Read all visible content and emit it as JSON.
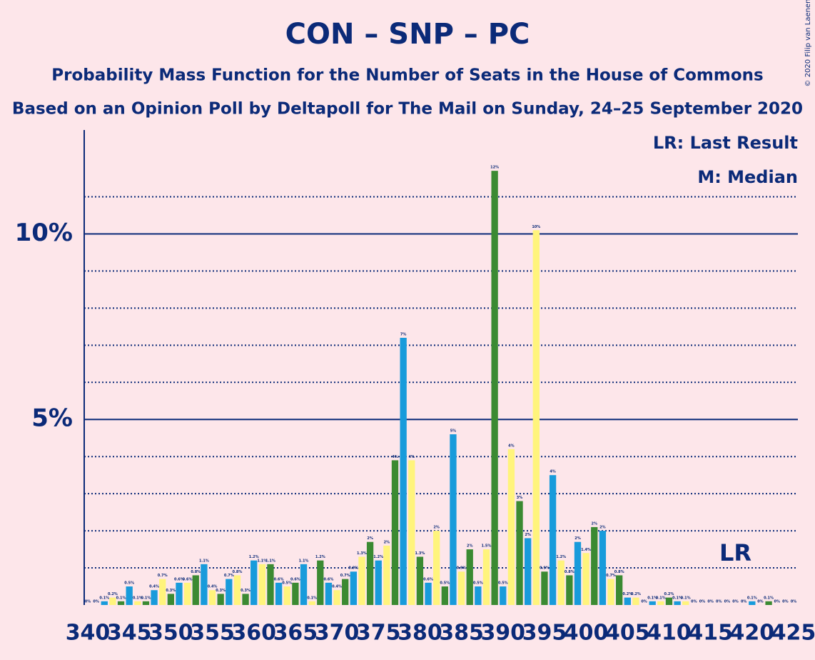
{
  "chart_data": {
    "type": "bar",
    "title": "CON – SNP – PC",
    "subtitle": "Probability Mass Function for the Number of Seats in the House of Commons",
    "subtitle2": "Based on an Opinion Poll by Deltapoll for The Mail on Sunday, 24–25 September 2020",
    "legend_lr": "LR: Last Result",
    "legend_m": "M: Median",
    "lr_label": "LR",
    "last_result": 418,
    "copyright": "© 2020 Filip van Laenen",
    "color_cycle": [
      "#fff47c",
      "#3b8a32",
      "#189bdb"
    ],
    "x": [
      340,
      341,
      342,
      343,
      344,
      345,
      346,
      347,
      348,
      349,
      350,
      351,
      352,
      353,
      354,
      355,
      356,
      357,
      358,
      359,
      360,
      361,
      362,
      363,
      364,
      365,
      366,
      367,
      368,
      369,
      370,
      371,
      372,
      373,
      374,
      375,
      376,
      377,
      378,
      379,
      380,
      381,
      382,
      383,
      384,
      385,
      386,
      387,
      388,
      389,
      390,
      391,
      392,
      393,
      394,
      395,
      396,
      397,
      398,
      399,
      400,
      401,
      402,
      403,
      404,
      405,
      406,
      407,
      408,
      409,
      410,
      411,
      412,
      413,
      414,
      415,
      416,
      417,
      418,
      419,
      420,
      421,
      422,
      423,
      424,
      425
    ],
    "values": [
      0,
      0,
      0.1,
      0.2,
      0.1,
      0.5,
      0.1,
      0.1,
      0.4,
      0.7,
      0.3,
      0.6,
      0.6,
      0.8,
      1.1,
      0.4,
      0.3,
      0.7,
      0.8,
      0.3,
      1.2,
      1.1,
      1.1,
      0.6,
      0.5,
      0.6,
      1.1,
      0.1,
      1.2,
      0.6,
      0.4,
      0.7,
      0.9,
      1.3,
      1.7,
      1.2,
      1.6,
      3.9,
      7.2,
      3.9,
      1.3,
      0.6,
      2.0,
      0.5,
      4.6,
      0.9,
      1.5,
      0.5,
      1.5,
      11.7,
      0.5,
      4.2,
      2.8,
      1.8,
      10.1,
      0.9,
      3.5,
      1.2,
      0.8,
      1.7,
      1.4,
      2.1,
      2.0,
      0.7,
      0.8,
      0.2,
      0.2,
      0,
      0.1,
      0.1,
      0.2,
      0.1,
      0.1,
      0,
      0,
      0,
      0,
      0,
      0,
      0,
      0.1,
      0,
      0.1,
      0,
      0,
      0
    ],
    "value_labels": [
      "0%",
      "0%",
      "0.1%",
      "0.2%",
      "0.1%",
      "0.5%",
      "0.1%",
      "0.1%",
      "0.4%",
      "0.7%",
      "0.3%",
      "0.6%",
      "0.6%",
      "0.8%",
      "1.1%",
      "0.4%",
      "0.3%",
      "0.7%",
      "0.8%",
      "0.3%",
      "1.2%",
      "1.1%",
      "1.1%",
      "0.6%",
      "0.5%",
      "0.6%",
      "1.1%",
      "0.1%",
      "1.2%",
      "0.6%",
      "0.4%",
      "0.7%",
      "0.9%",
      "1.3%",
      "2%",
      "1.2%",
      "2%",
      "4%",
      "7%",
      "4%",
      "1.3%",
      "0.6%",
      "2%",
      "0.5%",
      "5%",
      "0.9%",
      "2%",
      "0.5%",
      "1.5%",
      "12%",
      "0.5%",
      "4%",
      "3%",
      "2%",
      "10%",
      "0.9%",
      "4%",
      "1.2%",
      "0.8%",
      "2%",
      "1.4%",
      "2%",
      "2%",
      "0.7%",
      "0.8%",
      "0.2%",
      "0.2%",
      "0%",
      "0.1%",
      "0.1%",
      "0.2%",
      "0.1%",
      "0.1%",
      "0%",
      "0%",
      "0%",
      "0%",
      "0%",
      "0%",
      "0%",
      "0.1%",
      "0%",
      "0.1%",
      "0%",
      "0%",
      "0%"
    ],
    "xlim": [
      340,
      425
    ],
    "xticks": [
      340,
      345,
      350,
      355,
      360,
      365,
      370,
      375,
      380,
      385,
      390,
      395,
      400,
      405,
      410,
      415,
      420,
      425
    ],
    "ylim": [
      0,
      12.8
    ],
    "yticks": [
      {
        "value": 5,
        "label": "5%"
      },
      {
        "value": 10,
        "label": "10%"
      }
    ],
    "minor_gridlines": [
      1,
      2,
      3,
      4,
      6,
      7,
      8,
      9,
      11
    ]
  }
}
